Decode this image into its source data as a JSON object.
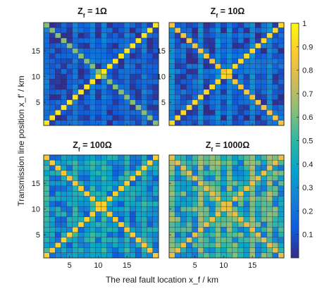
{
  "figure": {
    "xlabel": "The real fault location  x_f / km",
    "ylabel": "Transmission line position  x_f' / km"
  },
  "colorbar": {
    "min": 0,
    "max": 1,
    "ticks": [
      0.1,
      0.2,
      0.3,
      0.4,
      0.5,
      0.6,
      0.7,
      0.8,
      0.9,
      1
    ],
    "tick_labels": [
      "0.1",
      "0.2",
      "0.3",
      "0.4",
      "0.5",
      "0.6",
      "0.7",
      "0.8",
      "0.9",
      "1"
    ]
  },
  "chart_data": [
    {
      "type": "heatmap",
      "title": "Zf = 1Ω",
      "title_main": "Z",
      "title_sub": "f",
      "title_rest": " = 1Ω",
      "grid_size": 20,
      "xticks": [
        5,
        10,
        15
      ],
      "yticks": [
        5,
        10,
        15
      ],
      "xlim": [
        0.5,
        20.5
      ],
      "ylim": [
        0.5,
        20.5
      ],
      "show_xticklabels": false,
      "show_yticklabels": true,
      "base_level": 0.1,
      "noise": 0.1,
      "main_diagonal": 0.95,
      "anti_diagonal": 0.62,
      "bright_columns": [
        1,
        6,
        9,
        11,
        15,
        18
      ],
      "bright_column_level": 0.22
    },
    {
      "type": "heatmap",
      "title": "Zf = 10Ω",
      "title_main": "Z",
      "title_sub": "f",
      "title_rest": " = 10Ω",
      "grid_size": 20,
      "xticks": [
        5,
        10,
        15
      ],
      "yticks": [
        5,
        10,
        15
      ],
      "xlim": [
        0.5,
        20.5
      ],
      "ylim": [
        0.5,
        20.5
      ],
      "show_xticklabels": false,
      "show_yticklabels": true,
      "base_level": 0.12,
      "noise": 0.12,
      "main_diagonal": 0.92,
      "anti_diagonal": 0.85,
      "bright_columns": [
        1,
        6,
        9,
        11,
        15,
        18
      ],
      "bright_column_level": 0.28
    },
    {
      "type": "heatmap",
      "title": "Zf = 100Ω",
      "title_main": "Z",
      "title_sub": "f",
      "title_rest": " = 100Ω",
      "grid_size": 20,
      "xticks": [
        5,
        10,
        15
      ],
      "yticks": [
        5,
        10,
        15
      ],
      "xlim": [
        0.5,
        20.5
      ],
      "ylim": [
        0.5,
        20.5
      ],
      "show_xticklabels": true,
      "show_yticklabels": true,
      "base_level": 0.3,
      "noise": 0.18,
      "main_diagonal": 0.9,
      "anti_diagonal": 0.88,
      "bright_columns": [
        1,
        6,
        9,
        11,
        15,
        18
      ],
      "bright_column_level": 0.45
    },
    {
      "type": "heatmap",
      "title": "Zf = 1000Ω",
      "title_main": "Z",
      "title_sub": "f",
      "title_rest": " = 1000Ω",
      "grid_size": 20,
      "xticks": [
        5,
        10,
        15
      ],
      "yticks": [
        5,
        10,
        15
      ],
      "xlim": [
        0.5,
        20.5
      ],
      "ylim": [
        0.5,
        20.5
      ],
      "show_xticklabels": true,
      "show_yticklabels": false,
      "base_level": 0.42,
      "noise": 0.22,
      "main_diagonal": 0.82,
      "anti_diagonal": 0.8,
      "bright_columns": [
        1,
        6,
        9,
        11,
        15,
        18
      ],
      "bright_column_level": 0.6
    }
  ]
}
